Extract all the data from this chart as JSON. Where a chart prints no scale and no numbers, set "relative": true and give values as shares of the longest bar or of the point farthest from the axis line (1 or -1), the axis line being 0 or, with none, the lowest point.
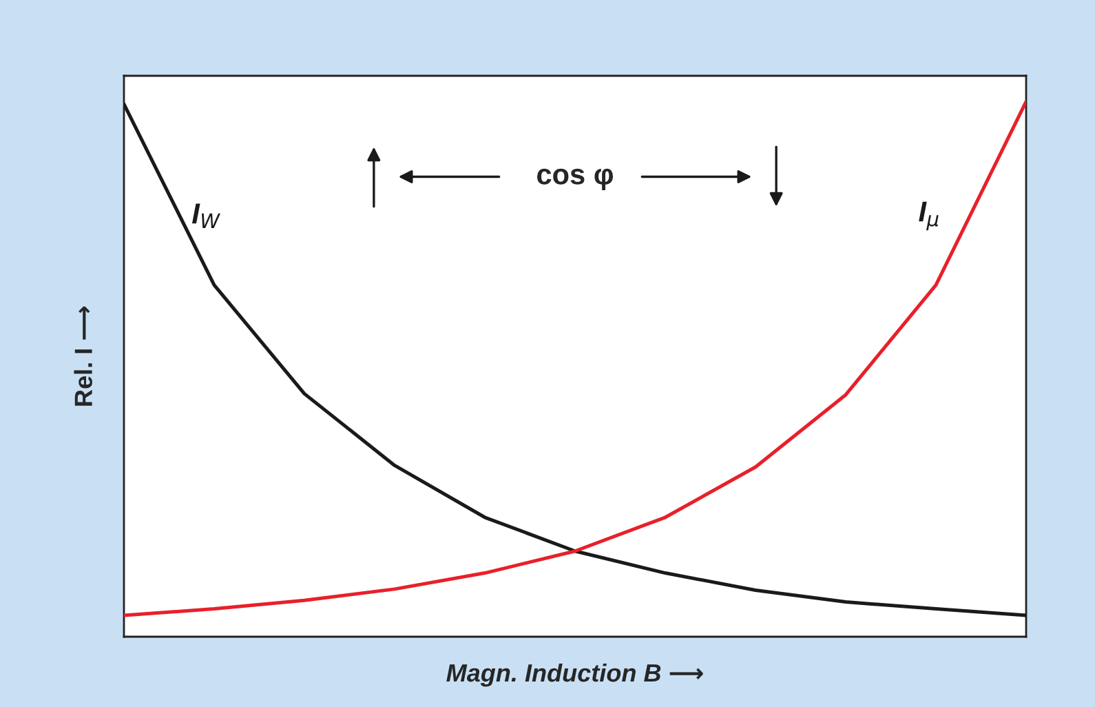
{
  "chart_data": {
    "type": "line",
    "relative": true,
    "xlabel": "Magn. Induction B ⟶",
    "ylabel": "Rel. I ⟶",
    "annotations": [
      "cos φ"
    ],
    "categories": [
      null,
      null,
      null,
      null,
      null,
      null,
      null,
      null,
      null,
      null,
      null
    ],
    "grid": false,
    "legend": false,
    "line_style": "solid",
    "marker": "none",
    "tick_labels": false,
    "series": [
      {
        "name": "I$_{W}$",
        "color": "#1a1a1a",
        "values": [
          0.995,
          0.657,
          0.454,
          0.32,
          0.223,
          0.16,
          0.119,
          0.087,
          0.065,
          0.052,
          0.04
        ]
      },
      {
        "name": "I$_{μ}$",
        "color": "#e8202a",
        "values": [
          0.04,
          0.052,
          0.068,
          0.089,
          0.119,
          0.16,
          0.223,
          0.317,
          0.452,
          0.657,
          1.0
        ]
      }
    ]
  }
}
